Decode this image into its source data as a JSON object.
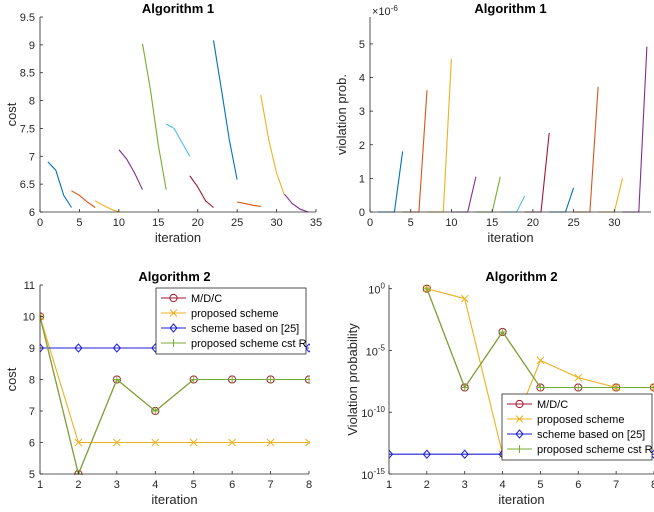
{
  "chart_data": [
    {
      "type": "line",
      "title": "Algorithm 1",
      "xlabel": "iteration",
      "ylabel": "cost",
      "xlim": [
        0,
        35
      ],
      "ylim": [
        6,
        9.5
      ],
      "xticks": [
        "0",
        "5",
        "10",
        "15",
        "20",
        "25",
        "30",
        "35"
      ],
      "yticks": [
        "6",
        "6.5",
        "7",
        "7.5",
        "8",
        "8.5",
        "9",
        "9.5"
      ],
      "grid": false,
      "series": [
        {
          "color": "#0072BD",
          "x": [
            1,
            2,
            3,
            4
          ],
          "y": [
            6.9,
            6.75,
            6.3,
            6.08
          ]
        },
        {
          "color": "#D95319",
          "x": [
            4,
            5,
            6,
            7
          ],
          "y": [
            6.38,
            6.3,
            6.18,
            6.08
          ]
        },
        {
          "color": "#EDB120",
          "x": [
            7,
            8,
            9,
            10
          ],
          "y": [
            6.2,
            6.12,
            6.05,
            6.0
          ]
        },
        {
          "color": "#7E2F8E",
          "x": [
            10,
            11,
            12,
            13
          ],
          "y": [
            7.12,
            6.95,
            6.7,
            6.4
          ]
        },
        {
          "color": "#77AC30",
          "x": [
            13,
            14,
            15,
            16
          ],
          "y": [
            9.02,
            8.2,
            7.2,
            6.4
          ]
        },
        {
          "color": "#4DBEEE",
          "x": [
            16,
            17,
            18,
            19
          ],
          "y": [
            7.58,
            7.5,
            7.25,
            7.0
          ]
        },
        {
          "color": "#A2142F",
          "x": [
            19,
            20,
            21,
            22
          ],
          "y": [
            6.65,
            6.45,
            6.2,
            6.08
          ]
        },
        {
          "color": "#0072BD",
          "x": [
            22,
            23,
            24,
            25
          ],
          "y": [
            9.08,
            8.2,
            7.3,
            6.58
          ]
        },
        {
          "color": "#D95319",
          "x": [
            25,
            26,
            27,
            28
          ],
          "y": [
            6.18,
            6.15,
            6.12,
            6.1
          ]
        },
        {
          "color": "#EDB120",
          "x": [
            28,
            29,
            30,
            31
          ],
          "y": [
            8.1,
            7.3,
            6.7,
            6.3
          ]
        },
        {
          "color": "#7E2F8E",
          "x": [
            31,
            32,
            33,
            34
          ],
          "y": [
            6.32,
            6.15,
            6.05,
            6.0
          ]
        }
      ]
    },
    {
      "type": "line",
      "title": "Algorithm 1",
      "xlabel": "iteration",
      "ylabel": "violation prob.",
      "exponent": "×10",
      "exponent_power": "-6",
      "xlim": [
        0,
        34.5
      ],
      "ylim": [
        0,
        5.8
      ],
      "xticks": [
        "0",
        "5",
        "10",
        "15",
        "20",
        "25",
        "30"
      ],
      "yticks": [
        "0",
        "1",
        "2",
        "3",
        "4",
        "5"
      ],
      "grid": false,
      "series": [
        {
          "color": "#0072BD",
          "x": [
            1,
            2,
            3,
            4
          ],
          "y": [
            0,
            0,
            0,
            1.8
          ]
        },
        {
          "color": "#D95319",
          "x": [
            4,
            5,
            6,
            7
          ],
          "y": [
            0,
            0,
            0,
            3.62
          ]
        },
        {
          "color": "#EDB120",
          "x": [
            7,
            8,
            9,
            10
          ],
          "y": [
            0,
            0,
            0,
            4.55
          ]
        },
        {
          "color": "#7E2F8E",
          "x": [
            10,
            11,
            12,
            13
          ],
          "y": [
            0,
            0,
            0,
            1.05
          ]
        },
        {
          "color": "#77AC30",
          "x": [
            13,
            14,
            15,
            16
          ],
          "y": [
            0,
            0,
            0,
            1.05
          ]
        },
        {
          "color": "#4DBEEE",
          "x": [
            16,
            17,
            18,
            19
          ],
          "y": [
            0,
            0,
            0,
            0.48
          ]
        },
        {
          "color": "#A2142F",
          "x": [
            19,
            20,
            21,
            22
          ],
          "y": [
            0,
            0,
            0,
            2.35
          ]
        },
        {
          "color": "#0072BD",
          "x": [
            22,
            23,
            24,
            25
          ],
          "y": [
            0,
            0,
            0,
            0.72
          ]
        },
        {
          "color": "#D95319",
          "x": [
            25,
            26,
            27,
            28
          ],
          "y": [
            0,
            0,
            0,
            3.72
          ]
        },
        {
          "color": "#EDB120",
          "x": [
            28,
            29,
            30,
            31
          ],
          "y": [
            0,
            0,
            0,
            1.0
          ]
        },
        {
          "color": "#7E2F8E",
          "x": [
            31,
            32,
            33,
            34
          ],
          "y": [
            0,
            0,
            0,
            4.92
          ]
        }
      ]
    },
    {
      "type": "line",
      "title": "Algorithm 2",
      "xlabel": "iteration",
      "ylabel": "cost",
      "xlim": [
        1,
        8
      ],
      "ylim": [
        5,
        11
      ],
      "xticks": [
        "1",
        "2",
        "3",
        "4",
        "5",
        "6",
        "7",
        "8"
      ],
      "yticks": [
        "5",
        "6",
        "7",
        "8",
        "9",
        "10",
        "11"
      ],
      "grid": false,
      "legend_position": "top-right",
      "x": [
        1,
        2,
        3,
        4,
        5,
        6,
        7,
        8
      ],
      "series": [
        {
          "name": "M/D/C",
          "color": "#A2142F",
          "marker": "circle",
          "values": [
            10,
            5,
            8,
            7,
            8,
            8,
            8,
            8
          ]
        },
        {
          "name": "proposed scheme",
          "color": "#EDB120",
          "marker": "x",
          "values": [
            10,
            6,
            6,
            6,
            6,
            6,
            6,
            6
          ]
        },
        {
          "name": "scheme based on [25]",
          "color": "#1f1fd6",
          "marker": "diamond",
          "values": [
            9,
            9,
            9,
            9,
            9,
            9,
            9,
            9
          ]
        },
        {
          "name": "proposed scheme cst R",
          "color": "#77AC30",
          "marker": "plus",
          "values": [
            10,
            5,
            8,
            7,
            8,
            8,
            8,
            8
          ]
        }
      ]
    },
    {
      "type": "line",
      "title": "Algorithm 2",
      "xlabel": "iteration",
      "ylabel": "Violation probability",
      "xlim": [
        1,
        8
      ],
      "ylim_log10": [
        -15,
        0.3
      ],
      "yscale": "log",
      "xticks": [
        "1",
        "2",
        "3",
        "4",
        "5",
        "6",
        "7",
        "8"
      ],
      "yticks": [
        {
          "base": "10",
          "exp": "0",
          "value": 0
        },
        {
          "base": "10",
          "exp": "-5",
          "value": -5
        },
        {
          "base": "10",
          "exp": "-10",
          "value": -10
        },
        {
          "base": "10",
          "exp": "-15",
          "value": -15
        }
      ],
      "grid": false,
      "legend_position": "bottom-right",
      "x": [
        1,
        2,
        3,
        4,
        5,
        6,
        7,
        8
      ],
      "series": [
        {
          "name": "M/D/C",
          "color": "#A2142F",
          "marker": "circle",
          "log10_values": [
            null,
            0,
            -8,
            -3.5,
            -8,
            -8,
            -8,
            -8
          ]
        },
        {
          "name": "proposed scheme",
          "color": "#EDB120",
          "marker": "x",
          "log10_values": [
            null,
            0,
            -0.8,
            -13.4,
            -5.8,
            -7.2,
            -8,
            -8
          ]
        },
        {
          "name": "scheme based on [25]",
          "color": "#1f1fd6",
          "marker": "diamond",
          "log10_values": [
            -13.4,
            -13.4,
            -13.4,
            -13.4,
            -13.4,
            -13.4,
            -13.4,
            -13.4
          ]
        },
        {
          "name": "proposed scheme cst R",
          "color": "#77AC30",
          "marker": "plus",
          "log10_values": [
            null,
            0,
            -8,
            -3.5,
            -8,
            -8,
            -8,
            -8
          ]
        }
      ]
    }
  ]
}
